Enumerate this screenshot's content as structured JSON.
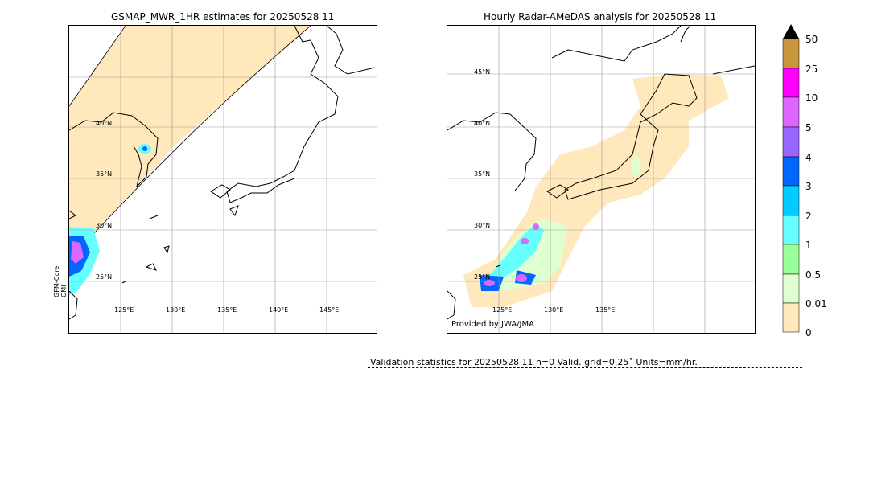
{
  "left_map": {
    "title": "GSMAP_MWR_1HR estimates for 20250528 11",
    "satellite_label": [
      "GPM-Core",
      "GMI"
    ],
    "lat_labels": [
      "40°N",
      "35°N",
      "30°N",
      "25°N"
    ],
    "lon_labels": [
      "125°E",
      "130°E",
      "135°E",
      "140°E",
      "145°E"
    ]
  },
  "right_map": {
    "title": "Hourly Radar-AMeDAS analysis for 20250528 11",
    "lat_labels": [
      "45°N",
      "40°N",
      "35°N",
      "30°N",
      "25°N"
    ],
    "lon_labels": [
      "125°E",
      "130°E",
      "135°E"
    ],
    "credit": "Provided by JWA/JMA"
  },
  "colorbar": {
    "levels": [
      {
        "label": "50",
        "color": "#000000"
      },
      {
        "label": "25",
        "color": "#c8963c"
      },
      {
        "label": "10",
        "color": "#ff00ff"
      },
      {
        "label": "5",
        "color": "#dd66ff"
      },
      {
        "label": "4",
        "color": "#9966ff"
      },
      {
        "label": "3",
        "color": "#0066ff"
      },
      {
        "label": "2",
        "color": "#00ccff"
      },
      {
        "label": "1",
        "color": "#66ffff"
      },
      {
        "label": "0.5",
        "color": "#99ff99"
      },
      {
        "label": "0.01",
        "color": "#e0ffd0"
      },
      {
        "label": "0",
        "color": "#ffe8bb"
      }
    ]
  },
  "validation": {
    "text": "Validation statistics for 20250528 11  n=0 Valid. grid=0.25˚ Units=mm/hr."
  }
}
